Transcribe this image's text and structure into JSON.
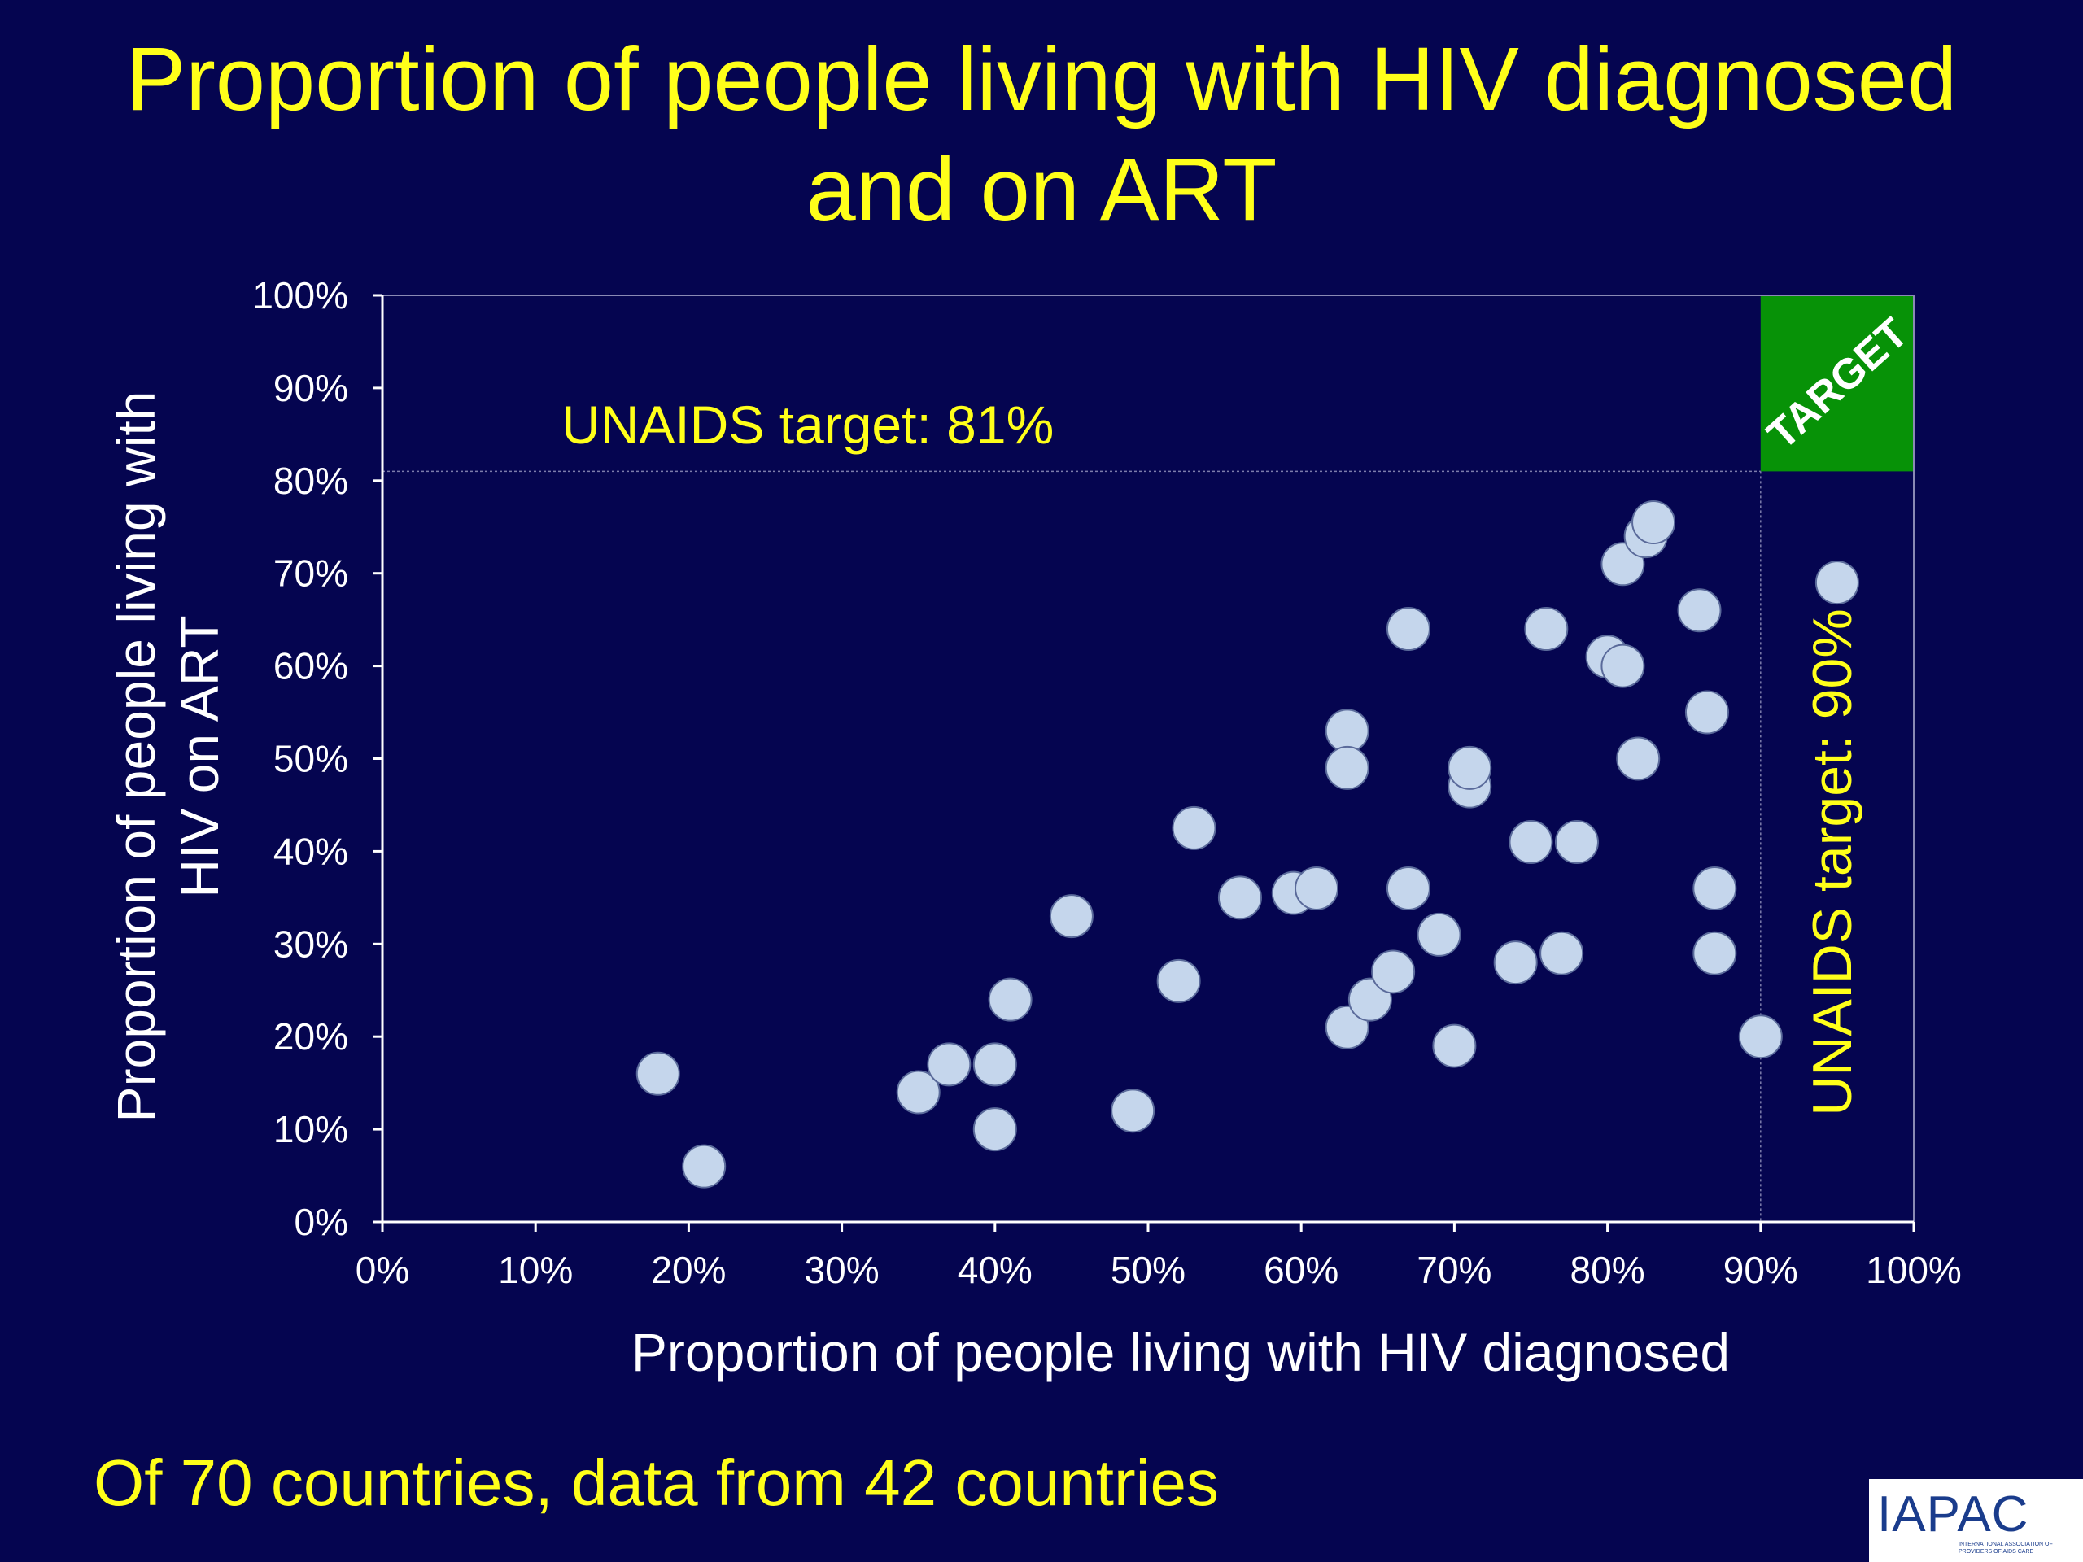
{
  "slide": {
    "title_line1": "Proportion of people living with HIV diagnosed",
    "title_line2": "and on ART",
    "footnote": "Of 70 countries, data from 42 countries",
    "logo_text": "IAPAC",
    "logo_subtext": "INTERNATIONAL ASSOCIATION OF PROVIDERS OF AIDS CARE"
  },
  "colors": {
    "background": "#050550",
    "title": "#ffff1a",
    "annotation": "#ffff1a",
    "axis_text": "#ffffff",
    "point_fill": "#c5d6ec",
    "target_fill": "#079207"
  },
  "chart_data": {
    "type": "scatter",
    "xlabel": "Proportion of people living with HIV diagnosed",
    "ylabel_lines": [
      "Proportion of  people living with",
      "HIV on ART"
    ],
    "xlim": [
      0,
      100
    ],
    "ylim": [
      0,
      100
    ],
    "xticks": [
      "0%",
      "10%",
      "20%",
      "30%",
      "40%",
      "50%",
      "60%",
      "70%",
      "80%",
      "90%",
      "100%"
    ],
    "yticks": [
      "0%",
      "10%",
      "20%",
      "30%",
      "40%",
      "50%",
      "60%",
      "70%",
      "80%",
      "90%",
      "100%"
    ],
    "grid": false,
    "points": [
      {
        "x": 18,
        "y": 16
      },
      {
        "x": 21,
        "y": 6
      },
      {
        "x": 35,
        "y": 14
      },
      {
        "x": 37,
        "y": 17
      },
      {
        "x": 40,
        "y": 17
      },
      {
        "x": 40,
        "y": 10
      },
      {
        "x": 41,
        "y": 24
      },
      {
        "x": 45,
        "y": 33
      },
      {
        "x": 49,
        "y": 12
      },
      {
        "x": 52,
        "y": 26
      },
      {
        "x": 53,
        "y": 42.5
      },
      {
        "x": 56,
        "y": 35
      },
      {
        "x": 59.5,
        "y": 35.5
      },
      {
        "x": 61,
        "y": 36
      },
      {
        "x": 63,
        "y": 53
      },
      {
        "x": 63,
        "y": 49
      },
      {
        "x": 63,
        "y": 21
      },
      {
        "x": 64.5,
        "y": 24
      },
      {
        "x": 66,
        "y": 27
      },
      {
        "x": 67,
        "y": 36
      },
      {
        "x": 67,
        "y": 64
      },
      {
        "x": 69,
        "y": 31
      },
      {
        "x": 70,
        "y": 19
      },
      {
        "x": 71,
        "y": 47
      },
      {
        "x": 71,
        "y": 49
      },
      {
        "x": 74,
        "y": 28
      },
      {
        "x": 75,
        "y": 41
      },
      {
        "x": 76,
        "y": 64
      },
      {
        "x": 77,
        "y": 29
      },
      {
        "x": 78,
        "y": 41
      },
      {
        "x": 80,
        "y": 61
      },
      {
        "x": 81,
        "y": 60
      },
      {
        "x": 81,
        "y": 71
      },
      {
        "x": 82,
        "y": 50
      },
      {
        "x": 82.5,
        "y": 74
      },
      {
        "x": 83,
        "y": 75.5
      },
      {
        "x": 86,
        "y": 66
      },
      {
        "x": 86.5,
        "y": 55
      },
      {
        "x": 87,
        "y": 36
      },
      {
        "x": 87,
        "y": 29
      },
      {
        "x": 90,
        "y": 20
      },
      {
        "x": 95,
        "y": 69
      }
    ],
    "reference_lines": [
      {
        "axis": "y",
        "value": 81,
        "label": "UNAIDS target: 81%"
      },
      {
        "axis": "x",
        "value": 90,
        "label": "UNAIDS target: 90%"
      }
    ],
    "target_region": {
      "x": [
        90,
        100
      ],
      "y": [
        81,
        100
      ],
      "label": "TARGET"
    }
  }
}
